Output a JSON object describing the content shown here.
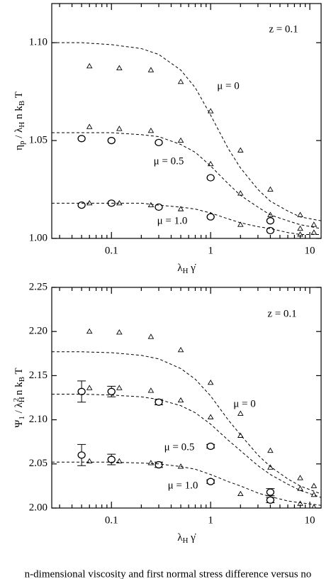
{
  "chart_data": [
    {
      "type": "scatter",
      "ylabel": [
        {
          "text": "η"
        },
        {
          "text": "p",
          "pos": "sub"
        },
        {
          "text": " / λ"
        },
        {
          "text": "H",
          "pos": "sub"
        },
        {
          "text": " n k"
        },
        {
          "text": "B",
          "pos": "sub"
        },
        {
          "text": " T"
        }
      ],
      "xlabel": [
        {
          "text": "λ"
        },
        {
          "text": "H",
          "pos": "sub"
        },
        {
          "text": " γ̇"
        }
      ],
      "log_x": true,
      "xlim": [
        0.025,
        13
      ],
      "ylim": [
        1.0,
        1.12
      ],
      "xticks": [
        0.1,
        1,
        10
      ],
      "xminor_ticks": [
        0.03,
        0.04,
        0.05,
        0.06,
        0.07,
        0.08,
        0.09,
        0.2,
        0.3,
        0.4,
        0.5,
        0.6,
        0.7,
        0.8,
        0.9,
        2,
        3,
        4,
        5,
        6,
        7,
        8,
        9
      ],
      "yticks": [
        {
          "value": 1.0,
          "label": "1.00"
        },
        1.05,
        {
          "value": 1.1,
          "label": "1.10"
        }
      ],
      "annotations": [
        "z = 0.1",
        "μ = 0",
        "μ = 0.5",
        "μ = 1.0"
      ],
      "series": [
        {
          "marker": "triangle",
          "color": "#000000",
          "x": [
            0.06,
            0.12,
            0.25,
            0.5,
            1,
            2,
            4,
            8,
            11
          ],
          "y": [
            1.088,
            1.087,
            1.086,
            1.08,
            1.065,
            1.045,
            1.025,
            1.012,
            1.007
          ]
        },
        {
          "marker": "triangle",
          "color": "#000000",
          "x": [
            0.06,
            0.12,
            0.25,
            0.5,
            1,
            2,
            4,
            8,
            11
          ],
          "y": [
            1.057,
            1.056,
            1.055,
            1.05,
            1.038,
            1.023,
            1.012,
            1.005,
            1.003
          ]
        },
        {
          "marker": "triangle",
          "color": "#000000",
          "x": [
            0.06,
            0.12,
            0.25,
            0.5,
            1,
            2,
            4,
            8
          ],
          "y": [
            1.018,
            1.018,
            1.017,
            1.015,
            1.012,
            1.007,
            1.004,
            1.002
          ]
        },
        {
          "marker": "circle",
          "color": "#000000",
          "x": [
            0.05,
            0.1,
            0.3,
            1,
            4
          ],
          "y": [
            1.051,
            1.05,
            1.049,
            1.031,
            1.009
          ]
        },
        {
          "marker": "circle",
          "color": "#000000",
          "x": [
            0.05,
            0.1,
            0.3,
            1,
            4
          ],
          "y": [
            1.017,
            1.018,
            1.016,
            1.011,
            1.004
          ]
        },
        {
          "line": "dashed",
          "color": "#000000",
          "x": [
            0.025,
            0.05,
            0.1,
            0.2,
            0.3,
            0.5,
            0.7,
            1,
            1.5,
            2,
            3,
            4,
            6,
            8,
            13
          ],
          "y": [
            1.1,
            1.1,
            1.099,
            1.097,
            1.094,
            1.086,
            1.077,
            1.063,
            1.046,
            1.036,
            1.025,
            1.019,
            1.014,
            1.011,
            1.009
          ]
        },
        {
          "line": "dashed",
          "color": "#000000",
          "x": [
            0.025,
            0.05,
            0.1,
            0.2,
            0.3,
            0.5,
            0.7,
            1,
            1.5,
            2,
            3,
            4,
            6,
            8,
            13
          ],
          "y": [
            1.054,
            1.054,
            1.054,
            1.053,
            1.052,
            1.048,
            1.044,
            1.037,
            1.028,
            1.022,
            1.016,
            1.012,
            1.009,
            1.007,
            1.005
          ]
        },
        {
          "line": "dashed",
          "color": "#000000",
          "x": [
            0.025,
            0.05,
            0.1,
            0.2,
            0.3,
            0.5,
            0.7,
            1,
            1.5,
            2,
            3,
            4,
            6,
            8,
            13
          ],
          "y": [
            1.018,
            1.018,
            1.018,
            1.018,
            1.017,
            1.016,
            1.015,
            1.013,
            1.01,
            1.008,
            1.006,
            1.005,
            1.003,
            1.002,
            1.002
          ]
        }
      ]
    },
    {
      "type": "scatter",
      "ylabel": [
        {
          "text": "Ψ"
        },
        {
          "text": "1",
          "pos": "sub"
        },
        {
          "text": " / λ"
        },
        {
          "text": "H",
          "pos": "sub"
        },
        {
          "text": "2",
          "pos": "sup"
        },
        {
          "text": " n k"
        },
        {
          "text": "B",
          "pos": "sub"
        },
        {
          "text": " T"
        }
      ],
      "xlabel": [
        {
          "text": "λ"
        },
        {
          "text": "H",
          "pos": "sub"
        },
        {
          "text": " γ̇"
        }
      ],
      "log_x": true,
      "xlim": [
        0.025,
        13
      ],
      "ylim": [
        2.0,
        2.25
      ],
      "xticks": [
        0.1,
        1,
        10
      ],
      "xminor_ticks": [
        0.03,
        0.04,
        0.05,
        0.06,
        0.07,
        0.08,
        0.09,
        0.2,
        0.3,
        0.4,
        0.5,
        0.6,
        0.7,
        0.8,
        0.9,
        2,
        3,
        4,
        5,
        6,
        7,
        8,
        9
      ],
      "yticks": [
        {
          "value": 2.0,
          "label": "2.00"
        },
        2.05,
        {
          "value": 2.1,
          "label": "2.10"
        },
        2.15,
        {
          "value": 2.2,
          "label": "2.20"
        },
        2.25
      ],
      "annotations": [
        "z = 0.1",
        "μ = 0",
        "μ = 0.5",
        "μ = 1.0"
      ],
      "series": [
        {
          "marker": "triangle",
          "color": "#000000",
          "x": [
            0.06,
            0.12,
            0.25,
            0.5,
            1,
            2,
            4,
            8,
            11
          ],
          "y": [
            2.2,
            2.199,
            2.194,
            2.179,
            2.142,
            2.107,
            2.065,
            2.034,
            2.025
          ]
        },
        {
          "marker": "triangle",
          "color": "#000000",
          "x": [
            0.06,
            0.12,
            0.25,
            0.5,
            1,
            2,
            4,
            8,
            11
          ],
          "y": [
            2.136,
            2.136,
            2.133,
            2.122,
            2.103,
            2.082,
            2.046,
            2.022,
            2.015
          ]
        },
        {
          "marker": "triangle",
          "color": "#000000",
          "x": [
            0.06,
            0.12,
            0.25,
            0.5,
            1,
            2,
            4,
            8,
            11
          ],
          "y": [
            2.053,
            2.053,
            2.051,
            2.047,
            2.031,
            2.016,
            2.008,
            2.005,
            2.001
          ]
        },
        {
          "marker": "circle",
          "color": "#000000",
          "x": [
            0.05,
            0.1,
            0.3,
            1,
            4
          ],
          "y": [
            2.132,
            2.132,
            2.12,
            2.07,
            2.018
          ],
          "errors": [
            0.012,
            0.006,
            0.003,
            0.002,
            0.004
          ]
        },
        {
          "marker": "circle",
          "color": "#000000",
          "x": [
            0.05,
            0.1,
            0.3,
            1,
            4
          ],
          "y": [
            2.06,
            2.055,
            2.049,
            2.03,
            2.009
          ],
          "errors": [
            0.012,
            0.006,
            0.003,
            0.002,
            0.003
          ]
        },
        {
          "line": "dashed",
          "color": "#000000",
          "x": [
            0.025,
            0.05,
            0.1,
            0.2,
            0.3,
            0.5,
            0.7,
            1,
            1.5,
            2,
            3,
            4,
            6,
            8,
            13
          ],
          "y": [
            2.177,
            2.177,
            2.176,
            2.173,
            2.169,
            2.158,
            2.146,
            2.127,
            2.1,
            2.083,
            2.06,
            2.047,
            2.033,
            2.025,
            2.016
          ]
        },
        {
          "line": "dashed",
          "color": "#000000",
          "x": [
            0.025,
            0.05,
            0.1,
            0.2,
            0.3,
            0.5,
            0.7,
            1,
            1.5,
            2,
            3,
            4,
            6,
            8,
            13
          ],
          "y": [
            2.129,
            2.129,
            2.128,
            2.126,
            2.123,
            2.116,
            2.108,
            2.095,
            2.077,
            2.065,
            2.048,
            2.038,
            2.027,
            2.02,
            2.012
          ]
        },
        {
          "line": "dashed",
          "color": "#000000",
          "x": [
            0.025,
            0.05,
            0.1,
            0.2,
            0.3,
            0.5,
            0.7,
            1,
            1.5,
            2,
            3,
            4,
            6,
            8,
            13
          ],
          "y": [
            2.052,
            2.052,
            2.052,
            2.051,
            2.05,
            2.047,
            2.044,
            2.038,
            2.03,
            2.025,
            2.017,
            2.013,
            2.008,
            2.006,
            2.003
          ]
        }
      ]
    }
  ],
  "caption": "n-dimensional viscosity and first normal stress difference versus no"
}
